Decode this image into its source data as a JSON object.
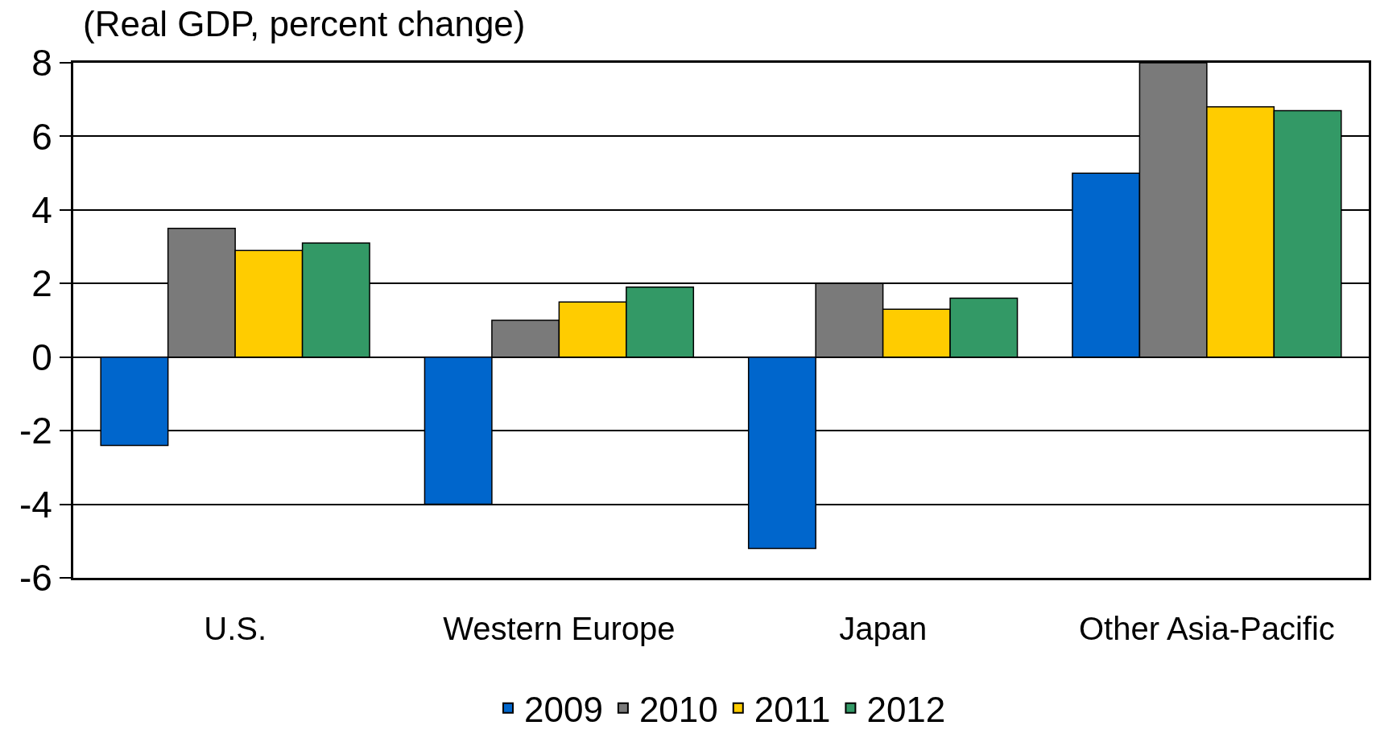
{
  "chart_data": {
    "type": "bar",
    "title": "(Real GDP, percent change)",
    "categories": [
      "U.S.",
      "Western Europe",
      "Japan",
      "Other Asia-Pacific"
    ],
    "series": [
      {
        "name": "2009",
        "color": "#0066cc",
        "values": [
          -2.4,
          -4.0,
          -5.2,
          5.0
        ]
      },
      {
        "name": "2010",
        "color": "#7a7a7a",
        "values": [
          3.5,
          1.0,
          2.0,
          8.0
        ]
      },
      {
        "name": "2011",
        "color": "#ffcc00",
        "values": [
          2.9,
          1.5,
          1.3,
          6.8
        ]
      },
      {
        "name": "2012",
        "color": "#339966",
        "values": [
          3.1,
          1.9,
          1.6,
          6.7
        ]
      }
    ],
    "ylim": [
      -6,
      8
    ],
    "yticks": [
      -6,
      -4,
      -2,
      0,
      2,
      4,
      6,
      8
    ],
    "grid": "y",
    "legend": "bottom"
  }
}
